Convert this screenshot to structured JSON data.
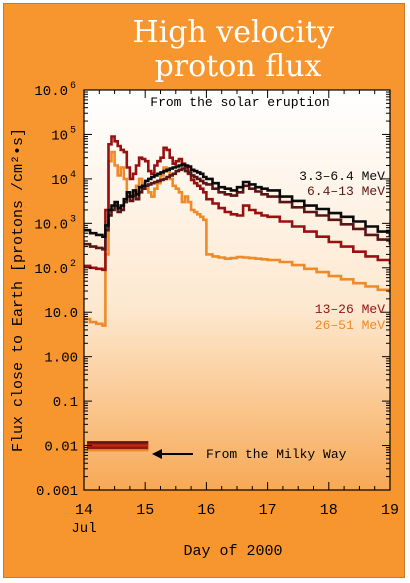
{
  "chart_data": {
    "type": "line",
    "title": "High velocity\nproton flux",
    "subtitle": "From the solar eruption",
    "xlabel": "Day of 2000",
    "ylabel": "Flux close to Earth [protons /cm²•s]",
    "xlim": [
      14,
      19
    ],
    "ylim": [
      0.001,
      1000000
    ],
    "yscale": "log",
    "grid": false,
    "x_ticks": [
      {
        "value": 14,
        "label": "14",
        "sublabel": "Jul"
      },
      {
        "value": 15,
        "label": "15"
      },
      {
        "value": 16,
        "label": "16"
      },
      {
        "value": 17,
        "label": "17"
      },
      {
        "value": 18,
        "label": "18"
      },
      {
        "value": 19,
        "label": "19"
      }
    ],
    "y_ticks": [
      {
        "value": 1000000,
        "label": "10.0",
        "exp": "6"
      },
      {
        "value": 100000,
        "label": "10",
        "exp": "5"
      },
      {
        "value": 10000,
        "label": "10",
        "exp": "4"
      },
      {
        "value": 1000,
        "label": "10.0",
        "exp": "3"
      },
      {
        "value": 100,
        "label": "10.0",
        "exp": "2"
      },
      {
        "value": 10,
        "label": "10.0"
      },
      {
        "value": 1,
        "label": "1.00"
      },
      {
        "value": 0.1,
        "label": "0.1"
      },
      {
        "value": 0.01,
        "label": "0.01"
      },
      {
        "value": 0.001,
        "label": "0.001"
      }
    ],
    "x": [
      14.0,
      14.1,
      14.2,
      14.3,
      14.35,
      14.4,
      14.45,
      14.5,
      14.55,
      14.6,
      14.65,
      14.7,
      14.75,
      14.8,
      14.85,
      14.9,
      14.95,
      15.0,
      15.05,
      15.1,
      15.15,
      15.2,
      15.25,
      15.3,
      15.35,
      15.4,
      15.45,
      15.5,
      15.55,
      15.6,
      15.65,
      15.7,
      15.75,
      15.8,
      15.85,
      15.9,
      15.95,
      16.0,
      16.1,
      16.2,
      16.3,
      16.4,
      16.5,
      16.6,
      16.7,
      16.8,
      16.9,
      17.0,
      17.2,
      17.4,
      17.6,
      17.8,
      18.0,
      18.2,
      18.4,
      18.6,
      18.8,
      19.0
    ],
    "series": [
      {
        "name": "3.3–6.4 MeV",
        "color": "#0a0a0a",
        "values": [
          700,
          600,
          550,
          500,
          900,
          2000,
          2500,
          3000,
          2200,
          2500,
          3500,
          5000,
          4000,
          5500,
          4500,
          6500,
          7000,
          9000,
          10000,
          11000,
          12000,
          13000,
          14000,
          15000,
          16000,
          17000,
          18000,
          19000,
          20000,
          21000,
          20000,
          19000,
          16000,
          15000,
          14000,
          13000,
          11000,
          10000,
          8000,
          6500,
          6000,
          5500,
          6500,
          8500,
          7500,
          6500,
          6000,
          5500,
          4000,
          3200,
          2500,
          2100,
          1700,
          1400,
          1100,
          850,
          650,
          500
        ]
      },
      {
        "name": "6.4–13 MeV",
        "color": "#5a1515",
        "values": [
          340,
          300,
          280,
          260,
          700,
          1500,
          2000,
          2500,
          1800,
          2000,
          3000,
          4000,
          3200,
          4200,
          3500,
          5000,
          6000,
          7000,
          7500,
          8000,
          8500,
          9000,
          9500,
          10000,
          11000,
          12000,
          13000,
          15000,
          16000,
          17000,
          15000,
          14000,
          12000,
          11000,
          10000,
          9000,
          8000,
          7500,
          6000,
          5000,
          4500,
          4200,
          5000,
          7000,
          6000,
          5200,
          4500,
          4000,
          3000,
          2300,
          1800,
          1500,
          1200,
          950,
          750,
          550,
          430,
          330
        ]
      },
      {
        "name": "13–26 MeV",
        "color": "#991010",
        "values": [
          110,
          100,
          95,
          90,
          2000,
          60000,
          90000,
          70000,
          55000,
          45000,
          40000,
          18000,
          10000,
          13000,
          20000,
          30000,
          28000,
          25000,
          15000,
          13000,
          20000,
          25000,
          30000,
          50000,
          45000,
          30000,
          22000,
          25000,
          28000,
          22000,
          18000,
          13000,
          9500,
          8000,
          7000,
          6000,
          5000,
          3500,
          2800,
          2200,
          1800,
          1600,
          1500,
          2500,
          2000,
          1700,
          1500,
          1400,
          1100,
          850,
          650,
          500,
          380,
          300,
          230,
          180,
          150,
          120
        ]
      },
      {
        "name": "26–51 MeV",
        "color": "#ee8a28",
        "values": [
          7,
          6,
          5.5,
          5,
          200,
          25000,
          40000,
          20000,
          12000,
          18000,
          10000,
          5000,
          4000,
          5000,
          7000,
          10000,
          8000,
          6000,
          5000,
          4000,
          6000,
          8000,
          12000,
          18000,
          15000,
          10000,
          7000,
          6000,
          5000,
          3000,
          4000,
          3000,
          2000,
          1800,
          1600,
          1400,
          1200,
          200,
          180,
          170,
          160,
          165,
          175,
          170,
          165,
          160,
          155,
          150,
          135,
          115,
          95,
          80,
          65,
          55,
          45,
          38,
          32,
          27
        ]
      }
    ],
    "annotations": {
      "milky_way_label": "From the Milky Way",
      "milky_way_band": {
        "x_start": 14.05,
        "x_end": 15.05,
        "y_low": 0.0075,
        "y_high": 0.0125
      }
    }
  }
}
